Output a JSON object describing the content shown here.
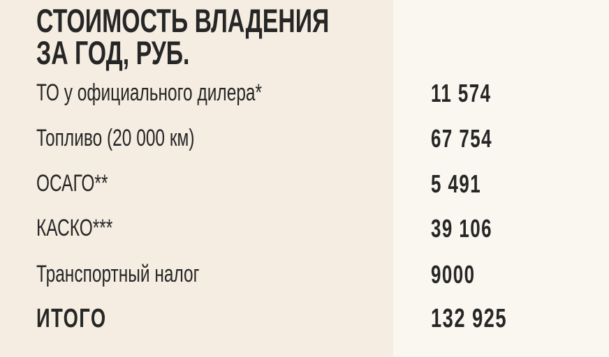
{
  "title": [
    "СТОИМОСТЬ ВЛАДЕНИЯ",
    "ЗА ГОД, РУБ."
  ],
  "rows": [
    {
      "label": "ТО у официального дилера*",
      "value": "11 574"
    },
    {
      "label": "Топливо (20 000 км)",
      "value": "67 754"
    },
    {
      "label": "ОСАГО**",
      "value": "5 491"
    },
    {
      "label": "КАСКО***",
      "value": "39 106"
    },
    {
      "label": "Транспортный налог",
      "value": "9000"
    }
  ],
  "total": {
    "label": "ИТОГО",
    "value": "132 925"
  },
  "colors": {
    "left_bg": "#f5ede1",
    "right_bg": "#faf7f0",
    "text": "#262626"
  }
}
